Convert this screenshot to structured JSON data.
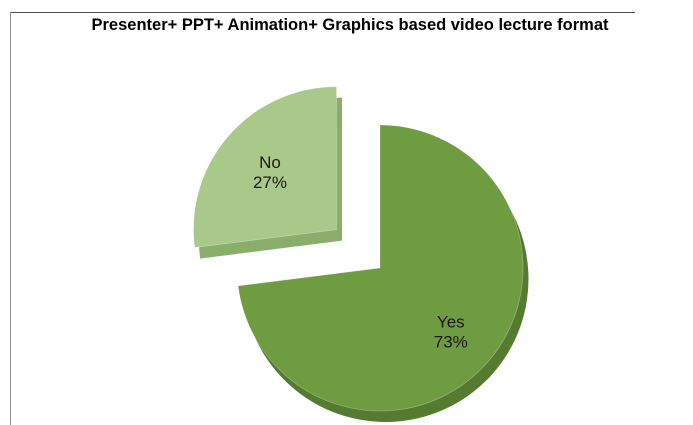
{
  "chart_data": {
    "type": "pie",
    "title": "Presenter+ PPT+ Animation+ Graphics based video lecture format",
    "slices": [
      {
        "label": "Yes",
        "value": 73,
        "display": "73%",
        "color": "#6f9b41",
        "side_color": "#557b30"
      },
      {
        "label": "No",
        "value": 27,
        "display": "27%",
        "color": "#a9c98a",
        "side_color": "#8aae6a"
      }
    ],
    "legend": "none",
    "exploded": "No"
  }
}
